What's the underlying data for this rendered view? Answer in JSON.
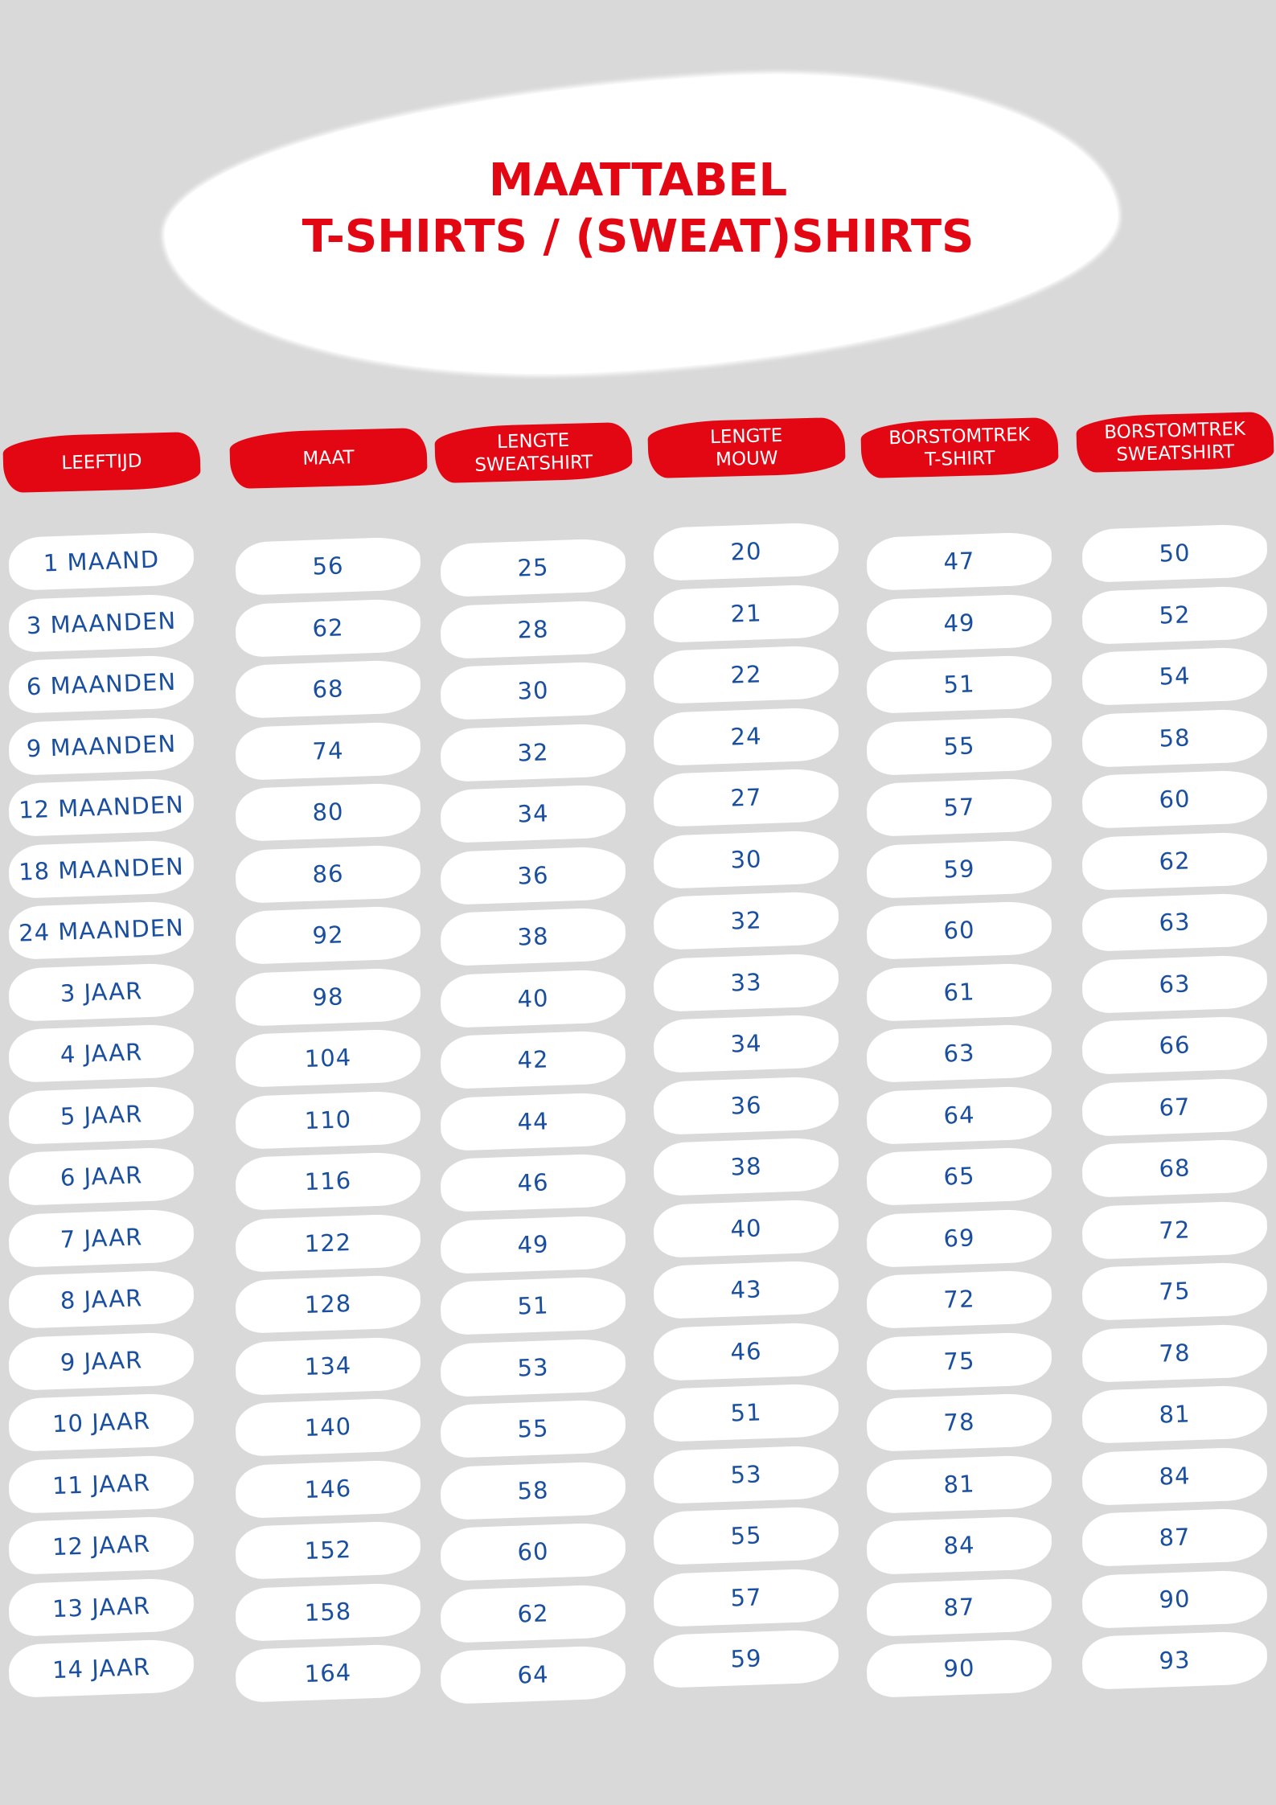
{
  "title": {
    "line1": "MAATTABEL",
    "line2": "T-SHIRTS / (SWEAT)SHIRTS"
  },
  "colors": {
    "accent": "#e30613",
    "text": "#1a4fa0",
    "background": "#d9d9d9"
  },
  "headers": [
    "LEEFTIJD",
    "MAAT",
    "LENGTE\nSWEATSHIRT",
    "LENGTE\nMOUW",
    "BORSTOMTREK\nT-SHIRT",
    "BORSTOMTREK\nSWEATSHIRT"
  ],
  "rows": [
    [
      "1 MAAND",
      "56",
      "25",
      "20",
      "47",
      "50"
    ],
    [
      "3 MAANDEN",
      "62",
      "28",
      "21",
      "49",
      "52"
    ],
    [
      "6 MAANDEN",
      "68",
      "30",
      "22",
      "51",
      "54"
    ],
    [
      "9 MAANDEN",
      "74",
      "32",
      "24",
      "55",
      "58"
    ],
    [
      "12 MAANDEN",
      "80",
      "34",
      "27",
      "57",
      "60"
    ],
    [
      "18 MAANDEN",
      "86",
      "36",
      "30",
      "59",
      "62"
    ],
    [
      "24 MAANDEN",
      "92",
      "38",
      "32",
      "60",
      "63"
    ],
    [
      "3 JAAR",
      "98",
      "40",
      "33",
      "61",
      "63"
    ],
    [
      "4 JAAR",
      "104",
      "42",
      "34",
      "63",
      "66"
    ],
    [
      "5 JAAR",
      "110",
      "44",
      "36",
      "64",
      "67"
    ],
    [
      "6 JAAR",
      "116",
      "46",
      "38",
      "65",
      "68"
    ],
    [
      "7 JAAR",
      "122",
      "49",
      "40",
      "69",
      "72"
    ],
    [
      "8 JAAR",
      "128",
      "51",
      "43",
      "72",
      "75"
    ],
    [
      "9 JAAR",
      "134",
      "53",
      "46",
      "75",
      "78"
    ],
    [
      "10 JAAR",
      "140",
      "55",
      "51",
      "78",
      "81"
    ],
    [
      "11 JAAR",
      "146",
      "58",
      "53",
      "81",
      "84"
    ],
    [
      "12 JAAR",
      "152",
      "60",
      "55",
      "84",
      "87"
    ],
    [
      "13 JAAR",
      "158",
      "62",
      "57",
      "87",
      "90"
    ],
    [
      "14 JAAR",
      "164",
      "64",
      "59",
      "90",
      "93"
    ]
  ]
}
